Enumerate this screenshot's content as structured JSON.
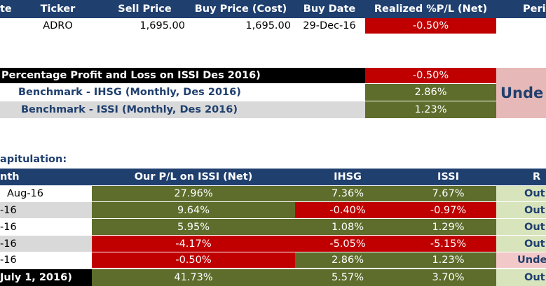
{
  "trade_table": {
    "headers": [
      "te",
      "Ticker",
      "Sell Price",
      "Buy Price (Cost)",
      "Buy Date",
      "Realized %P/L (Net)",
      "Peri"
    ],
    "row": {
      "ticker": "ADRO",
      "sell_price": "1,695.00",
      "buy_price": "1,695.00",
      "buy_date": "29-Dec-16",
      "realized_pl": "-0.50%"
    }
  },
  "summary": {
    "rows": [
      {
        "label": "Percentage Profit and Loss on ISSI Des 2016)",
        "value": "-0.50%"
      },
      {
        "label": "Benchmark - IHSG (Monthly, Des 2016)",
        "value": "2.86%"
      },
      {
        "label": "Benchmark - ISSI (Monthly, Des 2016)",
        "value": "1.23%"
      }
    ],
    "status": "Unde"
  },
  "recap": {
    "title": "apitulation:",
    "headers": [
      "nth",
      "Our P/L on ISSI (Net)",
      "IHSG",
      "ISSI",
      "R"
    ],
    "rows": [
      {
        "month": "Aug-16",
        "pl": "27.96%",
        "ihsg": "7.36%",
        "issi": "7.67%",
        "result": "Out"
      },
      {
        "month": "-16",
        "pl": "9.64%",
        "ihsg": "-0.40%",
        "issi": "-0.97%",
        "result": "Out"
      },
      {
        "month": "-16",
        "pl": "5.95%",
        "ihsg": "1.08%",
        "issi": "1.29%",
        "result": "Out"
      },
      {
        "month": "-16",
        "pl": "-4.17%",
        "ihsg": "-5.05%",
        "issi": "-5.15%",
        "result": "Out"
      },
      {
        "month": "-16",
        "pl": "-0.50%",
        "ihsg": "2.86%",
        "issi": "1.23%",
        "result": "Unde"
      }
    ],
    "total": {
      "label": "July 1, 2016)",
      "pl": "41.73%",
      "ihsg": "5.57%",
      "issi": "3.70%",
      "result": "Out"
    }
  },
  "colors": {
    "header": "#1f3f6e",
    "negative": "#c00000",
    "positive": "#5e6d2c"
  }
}
